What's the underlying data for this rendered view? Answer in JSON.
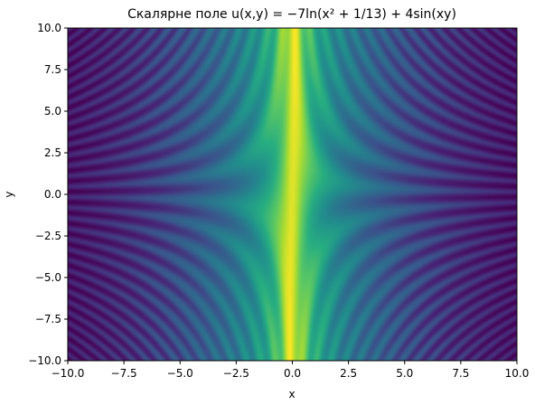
{
  "chart_data": {
    "type": "heatmap",
    "title": "Скалярне поле u(x,y) = −7ln(x² + 1/13) + 4sin(xy)",
    "xlabel": "x",
    "ylabel": "y",
    "xlim": [
      -10,
      10
    ],
    "ylim": [
      -10,
      10
    ],
    "x_ticks": [
      -10,
      -7.5,
      -5,
      -2.5,
      0,
      2.5,
      5,
      7.5,
      10
    ],
    "y_ticks": [
      -10,
      -7.5,
      -5,
      -2.5,
      0,
      2.5,
      5,
      7.5,
      10
    ],
    "x_tick_labels": [
      "−10.0",
      "−7.5",
      "−5.0",
      "−2.5",
      "0.0",
      "2.5",
      "5.0",
      "7.5",
      "10.0"
    ],
    "y_tick_labels": [
      "−10.0",
      "−7.5",
      "−5.0",
      "−2.5",
      "0.0",
      "2.5",
      "5.0",
      "7.5",
      "10.0"
    ],
    "field": {
      "log_coefficient": -7,
      "log_offset": 0.07692307692307693,
      "sin_coefficient": 4
    },
    "colormap": "viridis",
    "colors": {
      "low": "#440154",
      "mid": "#21918c",
      "high": "#fde725"
    },
    "grid": false,
    "legend": "none"
  }
}
